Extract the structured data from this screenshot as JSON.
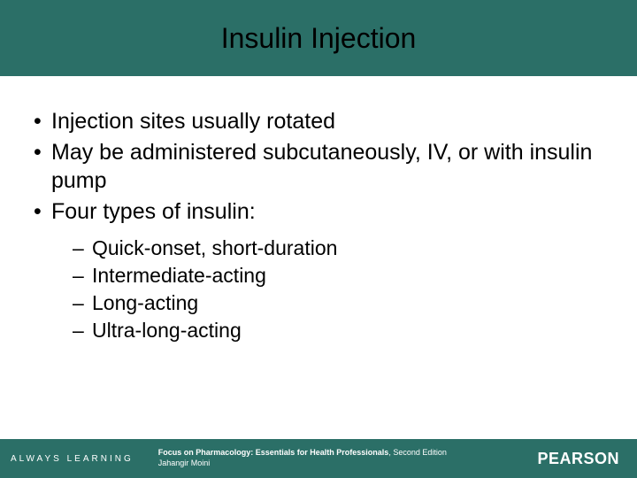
{
  "colors": {
    "title_bg": "#2b6f67",
    "title_text": "#000000",
    "footer_bg": "#2b6f67",
    "footer_text": "#ffffff",
    "body_text": "#000000",
    "slide_bg": "#ffffff"
  },
  "typography": {
    "title_fontsize": 32,
    "bullet_fontsize": 25,
    "sub_bullet_fontsize": 23,
    "footer_small_fontsize": 9,
    "footer_left_fontsize": 10,
    "brand_fontsize": 18
  },
  "title": "Insulin Injection",
  "bullets": [
    {
      "text": "Injection sites usually rotated"
    },
    {
      "text": "May be administered subcutaneously, IV, or with insulin pump"
    },
    {
      "text": "Four types of insulin:",
      "sub": [
        "Quick-onset, short-duration",
        "Intermediate-acting",
        "Long-acting",
        "Ultra-long-acting"
      ]
    }
  ],
  "footer": {
    "left": "ALWAYS LEARNING",
    "center_bold": "Focus on Pharmacology: Essentials for Health Professionals",
    "center_rest": ", Second Edition",
    "center_line2": "Jahangir Moini",
    "brand": "PEARSON"
  }
}
